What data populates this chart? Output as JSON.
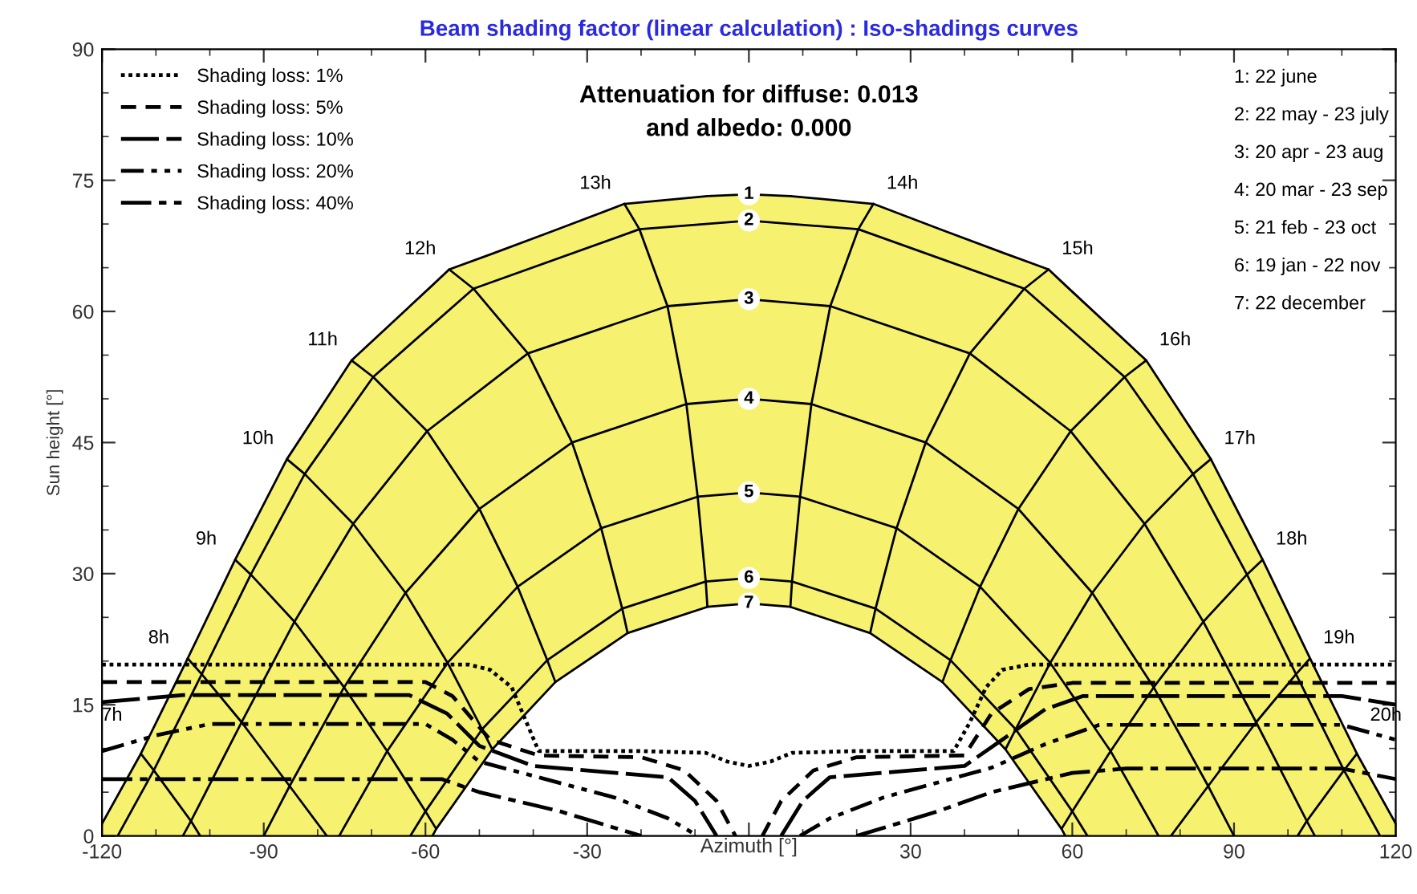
{
  "chart_data": {
    "type": "line",
    "title": "Beam shading factor (linear calculation) : Iso-shadings curves",
    "xlabel": "Azimuth [°]",
    "ylabel": "Sun height [°]",
    "xlim": [
      -120,
      120
    ],
    "ylim": [
      0,
      90
    ],
    "xticks": [
      -120,
      -90,
      -60,
      -30,
      {
        "value": 0,
        "label": null
      },
      30,
      60,
      90,
      120
    ],
    "yticks": [
      0,
      15,
      30,
      45,
      60,
      75,
      90
    ],
    "grid": false,
    "legend": "top left",
    "series": [
      {
        "type": "area",
        "color": "#f6f270",
        "x": [
          -120,
          -112.8,
          -104.1,
          -95.3,
          -85.7,
          -73.7,
          -58.7,
          -55.6,
          -47.6,
          -35.9,
          -23.1,
          -7.7,
          0,
          7.7,
          23.1,
          35.9,
          47.6,
          55.6,
          58.7,
          73.7,
          85.7,
          95.3,
          104.1,
          112.8,
          120
        ],
        "values": [
          1.4,
          9.4,
          20.3,
          31.6,
          43.1,
          54.4,
          63.0,
          64.8,
          66.6,
          69.3,
          72.3,
          73.2,
          73.4,
          73.2,
          72.3,
          69.3,
          66.6,
          64.8,
          63.0,
          54.4,
          43.1,
          31.6,
          20.3,
          9.4,
          1.4
        ]
      },
      {
        "color": "#000000",
        "x": [
          -117.1,
          -110.4,
          -101.5,
          -92.4,
          -82.4,
          -69.7,
          -51.1,
          -20.3,
          0,
          20.3,
          51.1,
          69.7,
          82.4,
          92.4,
          101.5,
          110.4,
          117.1
        ],
        "values": [
          0,
          7.5,
          18.5,
          29.9,
          41.4,
          52.5,
          62.6,
          69.4,
          70.4,
          69.4,
          62.6,
          52.5,
          41.4,
          29.9,
          18.5,
          7.5,
          0
        ]
      },
      {
        "color": "#000000",
        "x": [
          -105,
          -103.5,
          -94.1,
          -84.3,
          -73.4,
          -59.7,
          -41.0,
          -15.1,
          0,
          15.1,
          41.0,
          59.7,
          73.4,
          84.3,
          94.1,
          103.5,
          105
        ],
        "values": [
          0,
          1.7,
          13.0,
          24.5,
          35.7,
          46.3,
          55.2,
          60.6,
          61.4,
          60.6,
          55.2,
          46.3,
          35.7,
          24.5,
          13.0,
          1.7,
          0
        ]
      },
      {
        "color": "#000000",
        "x": [
          -90,
          -85.2,
          -75.1,
          -63.7,
          -50.0,
          -32.8,
          -11.6,
          0,
          11.6,
          32.8,
          50.0,
          63.7,
          75.1,
          85.2,
          90
        ],
        "values": [
          0,
          5.7,
          17.0,
          27.8,
          37.4,
          45.0,
          49.4,
          50.0,
          49.4,
          45.0,
          37.4,
          27.8,
          17.0,
          5.7,
          0
        ]
      },
      {
        "color": "#000000",
        "x": [
          -76,
          -67.1,
          -55.9,
          -42.9,
          -27.4,
          -9.5,
          0,
          9.5,
          27.4,
          42.9,
          55.9,
          67.1,
          76
        ],
        "values": [
          0,
          9.7,
          19.8,
          28.5,
          35.2,
          38.8,
          39.3,
          38.8,
          35.2,
          28.5,
          19.8,
          9.7,
          0
        ]
      },
      {
        "color": "#000000",
        "x": [
          -62.8,
          -60.0,
          -49.5,
          -37.4,
          -23.5,
          -8.0,
          0,
          8.0,
          23.5,
          37.4,
          49.5,
          60.0,
          62.8
        ],
        "values": [
          0,
          2.8,
          12.2,
          20.1,
          26.0,
          29.1,
          29.5,
          29.1,
          26.0,
          20.1,
          12.2,
          2.8,
          0
        ]
      },
      {
        "type": "area",
        "color": "#ffffff",
        "x": [
          -58.7,
          -58.0,
          -47.6,
          -35.9,
          -22.5,
          -7.7,
          0,
          7.7,
          22.5,
          35.9,
          47.6,
          58.0,
          58.7
        ],
        "values": [
          0,
          0.8,
          9.9,
          17.6,
          23.2,
          26.2,
          26.6,
          26.2,
          23.2,
          17.6,
          9.9,
          0.8,
          0
        ]
      },
      {
        "color": "#000000",
        "x": [
          -112.8,
          -110.4,
          -103.5,
          -101.8
        ],
        "values": [
          9.4,
          7.5,
          1.7,
          0
        ]
      },
      {
        "color": "#000000",
        "x": [
          -104.1,
          -101.5,
          -94.1,
          -85.2,
          -78.3
        ],
        "values": [
          20.3,
          18.5,
          13.0,
          5.7,
          0
        ]
      },
      {
        "color": "#000000",
        "x": [
          -95.3,
          -92.4,
          -84.3,
          -75.1,
          -67.1,
          -60.0,
          -58.0
        ],
        "values": [
          31.6,
          29.9,
          24.5,
          17.0,
          9.7,
          2.8,
          0.8
        ]
      },
      {
        "color": "#000000",
        "x": [
          -85.7,
          -82.4,
          -73.4,
          -63.7,
          -55.9,
          -49.5,
          -47.6
        ],
        "values": [
          43.1,
          41.4,
          35.7,
          27.8,
          19.8,
          12.2,
          9.9
        ]
      },
      {
        "color": "#000000",
        "x": [
          -73.7,
          -69.7,
          -59.7,
          -50.0,
          -42.9,
          -37.4,
          -35.9
        ],
        "values": [
          54.4,
          52.5,
          46.3,
          37.4,
          28.5,
          20.1,
          17.6
        ]
      },
      {
        "color": "#000000",
        "x": [
          -55.6,
          -51.1,
          -41.0,
          -32.8,
          -27.4,
          -23.5,
          -22.5
        ],
        "values": [
          64.8,
          62.6,
          55.2,
          45.0,
          35.2,
          26.0,
          23.2
        ]
      },
      {
        "color": "#000000",
        "x": [
          -23.1,
          -20.3,
          -15.1,
          -11.6,
          -9.5,
          -8.0,
          -7.7
        ],
        "values": [
          72.3,
          69.4,
          60.6,
          49.4,
          38.8,
          29.1,
          26.2
        ]
      },
      {
        "color": "#000000",
        "x": [
          23.1,
          20.3,
          15.1,
          11.6,
          9.5,
          8.0,
          7.7
        ],
        "values": [
          72.3,
          69.4,
          60.6,
          49.4,
          38.8,
          29.1,
          26.2
        ]
      },
      {
        "color": "#000000",
        "x": [
          55.6,
          51.1,
          41.0,
          32.8,
          27.4,
          23.5,
          22.5
        ],
        "values": [
          64.8,
          62.6,
          55.2,
          45.0,
          35.2,
          26.0,
          23.2
        ]
      },
      {
        "color": "#000000",
        "x": [
          73.7,
          69.7,
          59.7,
          50.0,
          42.9,
          37.4,
          35.9
        ],
        "values": [
          54.4,
          52.5,
          46.3,
          37.4,
          28.5,
          20.1,
          17.6
        ]
      },
      {
        "color": "#000000",
        "x": [
          85.7,
          82.4,
          73.4,
          63.7,
          55.9,
          49.5,
          47.6
        ],
        "values": [
          43.1,
          41.4,
          35.7,
          27.8,
          19.8,
          12.2,
          9.9
        ]
      },
      {
        "color": "#000000",
        "x": [
          95.3,
          92.4,
          84.3,
          75.1,
          67.1,
          60.0,
          58.0
        ],
        "values": [
          31.6,
          29.9,
          24.5,
          17.0,
          9.7,
          2.8,
          0.8
        ]
      },
      {
        "color": "#000000",
        "x": [
          104.1,
          101.5,
          94.1,
          85.2,
          78.3
        ],
        "values": [
          20.3,
          18.5,
          13.0,
          5.7,
          0
        ]
      },
      {
        "color": "#000000",
        "x": [
          112.8,
          110.4,
          103.5,
          101.8
        ],
        "values": [
          9.4,
          7.5,
          1.7,
          0
        ]
      },
      {
        "name": "Shading loss: 1%",
        "color": "#000000",
        "line_style": "dotted",
        "x": [
          -120,
          -52,
          -48,
          -44,
          -39,
          -20,
          -8,
          -4,
          0,
          4,
          8,
          20,
          38,
          41,
          44,
          47,
          52,
          120
        ],
        "values": [
          19.6,
          19.6,
          19,
          17,
          9.7,
          9.7,
          9.5,
          8.5,
          8.0,
          8.5,
          9.5,
          9.7,
          9.7,
          13,
          17,
          19,
          19.6,
          19.6
        ]
      },
      {
        "name": "Shading loss: 5%",
        "color": "#000000",
        "line_style": "dashed",
        "x": [
          -120,
          -60,
          -55,
          -48,
          -39,
          -20,
          -12,
          -6,
          -2.5,
          0,
          2.5,
          6,
          12,
          20,
          40,
          45,
          52,
          60,
          120
        ],
        "values": [
          17.6,
          17.6,
          16,
          11,
          9.2,
          9.0,
          7.5,
          4,
          0,
          null,
          0,
          4,
          7.5,
          9.0,
          9.2,
          14,
          16.8,
          17.5,
          17.5
        ]
      },
      {
        "name": "Shading loss: 10%",
        "color": "#000000",
        "line_style": "longdash",
        "x": [
          -120,
          -105,
          -63,
          -56,
          -50,
          -40,
          -15,
          -10,
          -6,
          0,
          6,
          10,
          15,
          40,
          47,
          55,
          62,
          110,
          120
        ],
        "values": [
          15.3,
          16.1,
          16.1,
          14,
          10.3,
          8.0,
          6.7,
          4,
          0,
          null,
          0,
          4,
          6.7,
          8.0,
          11,
          14.5,
          16.0,
          16.0,
          15.0
        ]
      },
      {
        "name": "Shading loss: 20%",
        "color": "#000000",
        "line_style": "dashdotdot",
        "x": [
          -120,
          -110,
          -100,
          -60,
          -55,
          -50,
          -25,
          -15,
          -9.5,
          0,
          9.5,
          15,
          25,
          45,
          55,
          65,
          110,
          120
        ],
        "values": [
          9.7,
          11.5,
          12.8,
          12.8,
          11,
          8.5,
          4.4,
          2,
          0,
          null,
          0,
          2,
          4.4,
          7.8,
          10.5,
          12.7,
          12.7,
          11.0
        ]
      },
      {
        "name": "Shading loss: 40%",
        "color": "#000000",
        "line_style": "dashdot",
        "x": [
          -120,
          -57,
          -50,
          -35,
          -20,
          0,
          20,
          35,
          45,
          60,
          70,
          110,
          120
        ],
        "values": [
          6.5,
          6.5,
          5.0,
          2.8,
          0,
          null,
          0,
          2.8,
          5.0,
          7.2,
          7.7,
          7.7,
          6.5
        ]
      }
    ],
    "annotations": [
      "Attenuation for diffuse: 0.013\nand albedo: 0.000",
      "1: 22 june",
      "2: 22 may - 23 july",
      "3: 20 apr - 23 aug",
      "4: 20 mar - 23 sep",
      "5: 21 feb - 23 oct",
      "6: 19 jan - 22 nov",
      "7: 22 december",
      {
        "text": "1",
        "x": 0,
        "y": 73.4
      },
      {
        "text": "2",
        "x": 0,
        "y": 70.4
      },
      {
        "text": "3",
        "x": 0,
        "y": 61.4
      },
      {
        "text": "4",
        "x": 0,
        "y": 50
      },
      {
        "text": "5",
        "x": 0,
        "y": 39.3
      },
      {
        "text": "6",
        "x": 0,
        "y": 29.5
      },
      {
        "text": "7",
        "x": 0,
        "y": 26.6
      },
      {
        "text": "7h",
        "x": -112.8,
        "y": 9.4
      },
      {
        "text": "8h",
        "x": -104.1,
        "y": 20.3
      },
      {
        "text": "9h",
        "x": -95.3,
        "y": 31.6
      },
      {
        "text": "10h",
        "x": -85.7,
        "y": 43.1
      },
      {
        "text": "11h",
        "x": -73.7,
        "y": 54.4
      },
      {
        "text": "12h",
        "x": -55.6,
        "y": 64.8
      },
      {
        "text": "13h",
        "x": -23.1,
        "y": 72.3
      },
      {
        "text": "14h",
        "x": 23.1,
        "y": 72.3
      },
      {
        "text": "15h",
        "x": 55.6,
        "y": 64.8
      },
      {
        "text": "16h",
        "x": 73.7,
        "y": 54.4
      },
      {
        "text": "17h",
        "x": 85.7,
        "y": 43.1
      },
      {
        "text": "18h",
        "x": 95.3,
        "y": 31.6
      },
      {
        "text": "19h",
        "x": 104.1,
        "y": 20.3
      },
      {
        "text": "20h",
        "x": 112.8,
        "y": 9.4
      }
    ]
  }
}
